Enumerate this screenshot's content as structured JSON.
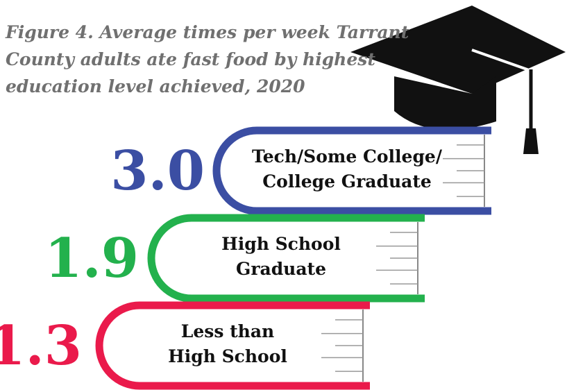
{
  "chart_data": {
    "type": "book-stack",
    "title": [
      "Figure 4.  Average times per week Tarrant",
      "County adults ate fast food by highest",
      "education level achieved, 2020"
    ],
    "categories": [
      [
        "Tech/Some College/",
        "College Graduate"
      ],
      [
        "High School",
        "Graduate"
      ],
      [
        "Less than",
        "High School"
      ]
    ],
    "values": [
      3.0,
      1.9,
      1.3
    ],
    "value_labels": [
      "3.0",
      "1.9",
      "1.3"
    ],
    "colors": [
      "#3b4ea3",
      "#23b14d",
      "#ea1a4b"
    ]
  }
}
